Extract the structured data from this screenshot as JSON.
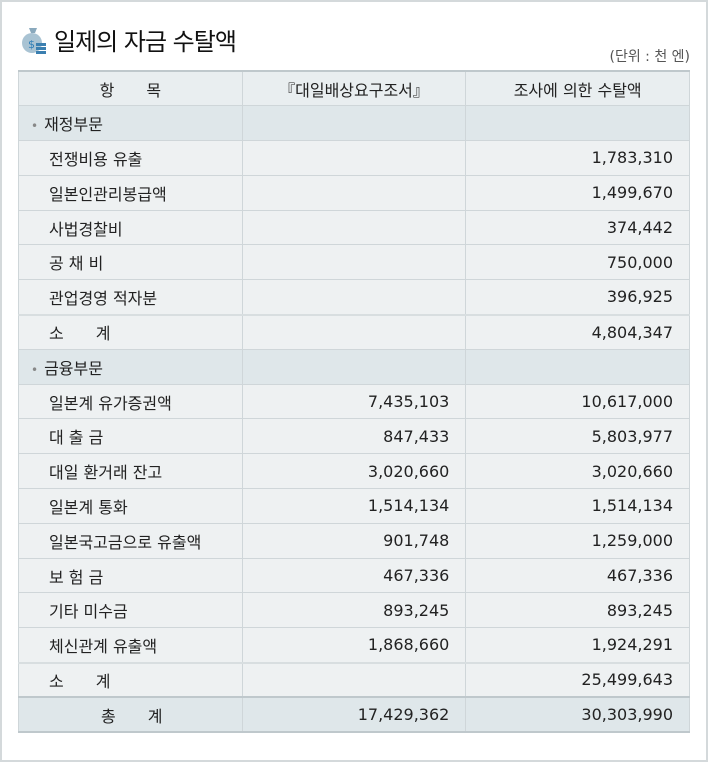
{
  "title": "일제의 자금 수탈액",
  "unit": "(단위 : 천 엔)",
  "columns": [
    "항　　목",
    "『대일배상요구조서』",
    "조사에 의한 수탈액"
  ],
  "sections": [
    {
      "name": "재정부문",
      "rows": [
        {
          "label": "전쟁비용 유출",
          "claim": "",
          "amount": "1,783,310"
        },
        {
          "label": "일본인관리봉급액",
          "claim": "",
          "amount": "1,499,670"
        },
        {
          "label": "사법경찰비",
          "claim": "",
          "amount": "374,442"
        },
        {
          "label": "공 채 비",
          "claim": "",
          "amount": "750,000"
        },
        {
          "label": "관업경영 적자분",
          "claim": "",
          "amount": "396,925"
        }
      ],
      "subtotal": {
        "label": "소　　계",
        "claim": "",
        "amount": "4,804,347"
      }
    },
    {
      "name": "금융부문",
      "rows": [
        {
          "label": "일본계 유가증권액",
          "claim": "7,435,103",
          "amount": "10,617,000"
        },
        {
          "label": "대 출 금",
          "claim": "847,433",
          "amount": "5,803,977"
        },
        {
          "label": "대일 환거래 잔고",
          "claim": "3,020,660",
          "amount": "3,020,660"
        },
        {
          "label": "일본계 통화",
          "claim": "1,514,134",
          "amount": "1,514,134"
        },
        {
          "label": "일본국고금으로 유출액",
          "claim": "901,748",
          "amount": "1,259,000"
        },
        {
          "label": "보 험 금",
          "claim": "467,336",
          "amount": "467,336"
        },
        {
          "label": "기타 미수금",
          "claim": "893,245",
          "amount": "893,245"
        },
        {
          "label": "체신관계 유출액",
          "claim": "1,868,660",
          "amount": "1,924,291"
        }
      ],
      "subtotal": {
        "label": "소　　계",
        "claim": "",
        "amount": "25,499,643"
      }
    }
  ],
  "total": {
    "label": "총　　계",
    "claim": "17,429,362",
    "amount": "30,303,990"
  },
  "icon": "money-bag-icon"
}
